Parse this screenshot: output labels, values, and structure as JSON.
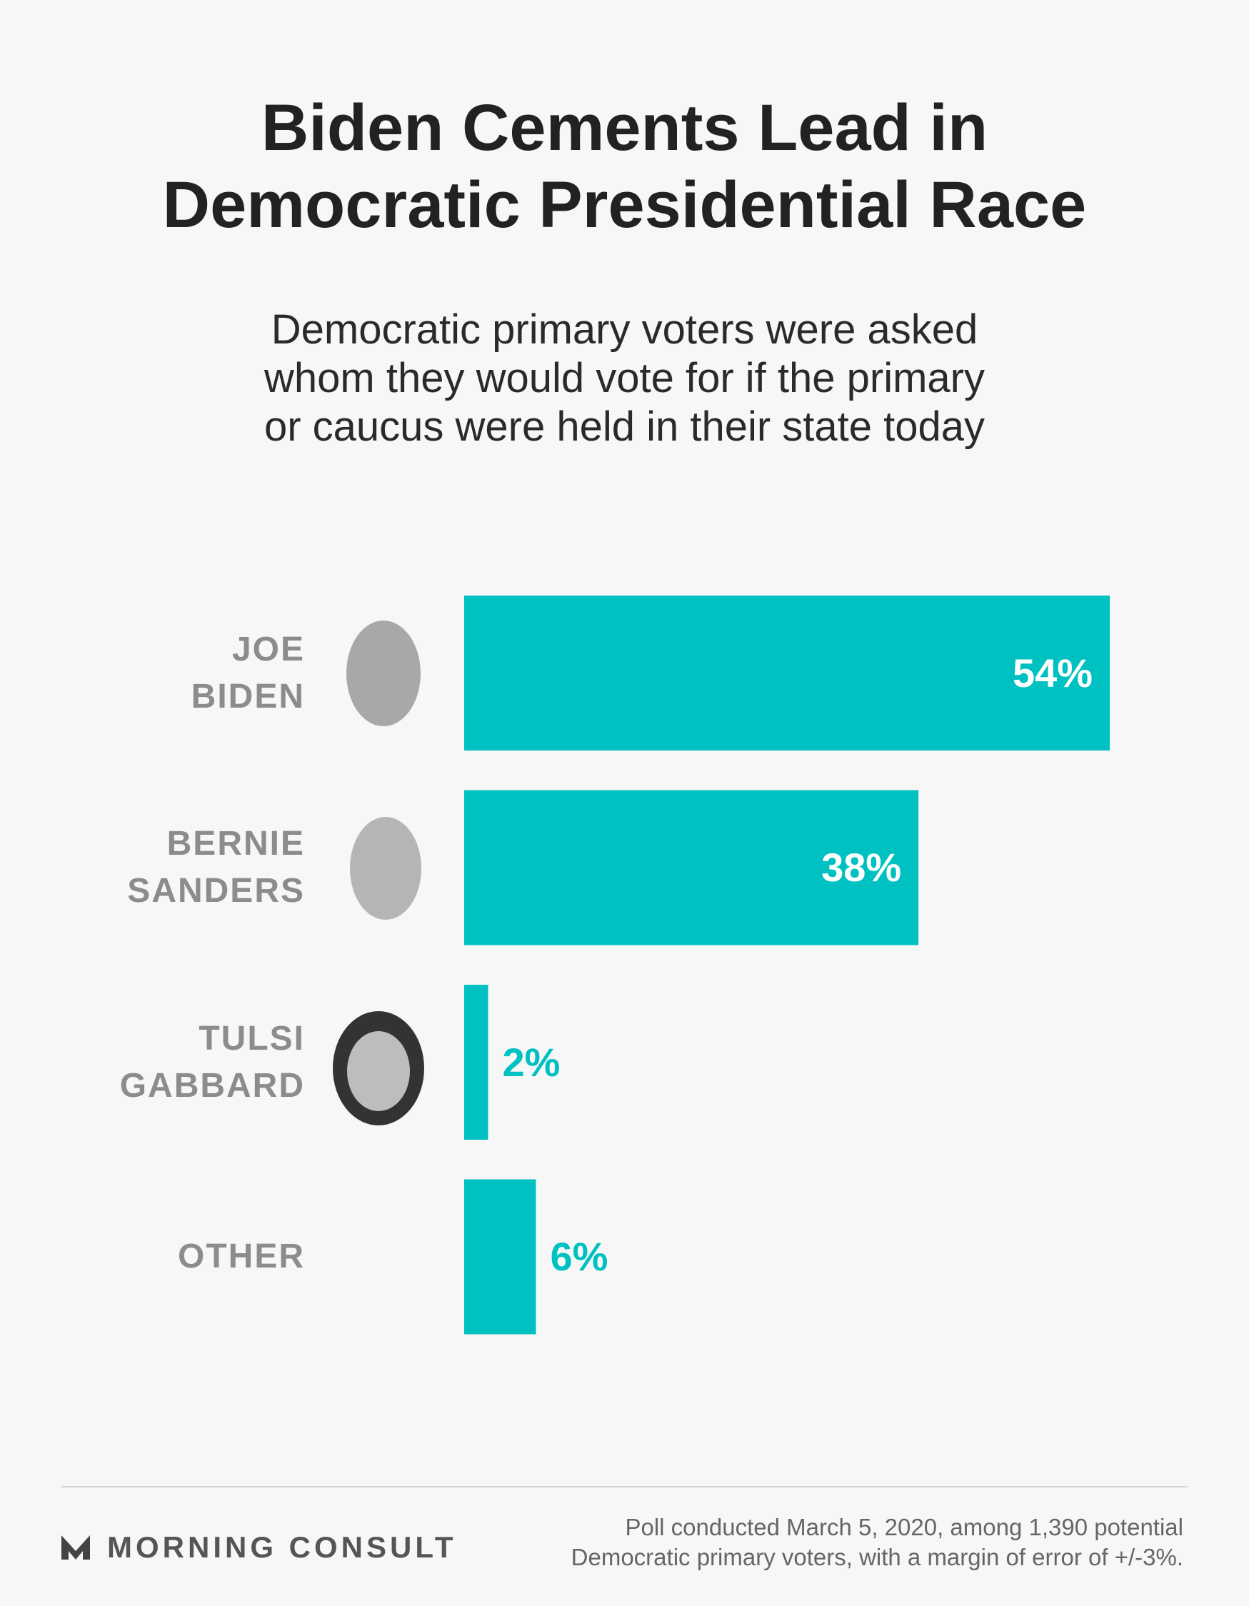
{
  "chart_data": {
    "type": "bar",
    "orientation": "horizontal",
    "title": [
      "Biden Cements Lead in",
      "Democratic Presidential Race"
    ],
    "subtitle": [
      "Democratic primary voters were asked",
      "whom they would vote for if the primary",
      "or caucus were held in their state today"
    ],
    "categories": [
      "JOE BIDEN",
      "BERNIE SANDERS",
      "TULSI GABBARD",
      "OTHER"
    ],
    "values": [
      54,
      38,
      2,
      6
    ],
    "value_labels": [
      "54%",
      "38%",
      "2%",
      "6%"
    ],
    "color": "#00c1c1",
    "xlim": [
      0,
      54
    ],
    "source": "MORNING CONSULT",
    "note": [
      "Poll conducted March 5, 2020, among 1,390 potential",
      "Democratic primary voters, with a margin of error of +/-3%."
    ]
  }
}
